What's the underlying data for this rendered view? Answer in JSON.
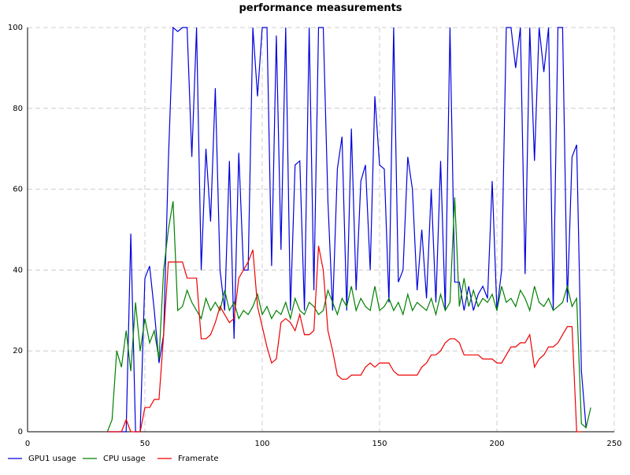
{
  "chart_data": {
    "type": "line",
    "title": "performance measurements",
    "x": [
      34,
      36,
      38,
      40,
      42,
      44,
      46,
      48,
      50,
      52,
      54,
      56,
      58,
      60,
      62,
      64,
      66,
      68,
      70,
      72,
      74,
      76,
      78,
      80,
      82,
      84,
      86,
      88,
      90,
      92,
      94,
      96,
      98,
      100,
      102,
      104,
      106,
      108,
      110,
      112,
      114,
      116,
      118,
      120,
      122,
      124,
      126,
      128,
      130,
      132,
      134,
      136,
      138,
      140,
      142,
      144,
      146,
      148,
      150,
      152,
      154,
      156,
      158,
      160,
      162,
      164,
      166,
      168,
      170,
      172,
      174,
      176,
      178,
      180,
      182,
      184,
      186,
      188,
      190,
      192,
      194,
      196,
      198,
      200,
      202,
      204,
      206,
      208,
      210,
      212,
      214,
      216,
      218,
      220,
      222,
      224,
      226,
      228,
      230,
      232,
      234,
      236,
      238,
      240
    ],
    "series": [
      {
        "name": "GPU1 usage",
        "color": "#0000dd",
        "values": [
          0,
          0,
          0,
          0,
          0,
          49,
          0,
          0,
          38,
          41,
          30,
          17,
          24,
          67,
          100,
          99,
          100,
          100,
          68,
          100,
          40,
          70,
          52,
          85,
          40,
          30,
          67,
          23,
          69,
          40,
          40,
          100,
          83,
          100,
          100,
          41,
          98,
          45,
          100,
          30,
          66,
          67,
          30,
          100,
          35,
          100,
          100,
          57,
          30,
          65,
          73,
          30,
          75,
          35,
          62,
          66,
          40,
          83,
          66,
          65,
          32,
          100,
          37,
          40,
          68,
          60,
          35,
          50,
          33,
          60,
          32,
          67,
          30,
          100,
          37,
          37,
          30,
          36,
          30,
          34,
          36,
          33,
          62,
          30,
          40,
          100,
          100,
          90,
          100,
          39,
          100,
          67,
          100,
          89,
          100,
          30,
          100,
          100,
          32,
          68,
          71,
          15,
          1,
          null
        ]
      },
      {
        "name": "CPU usage",
        "color": "#008000",
        "values": [
          0,
          3,
          20,
          16,
          25,
          15,
          32,
          20,
          28,
          22,
          25,
          18,
          40,
          50,
          57,
          30,
          31,
          35,
          32,
          30,
          28,
          33,
          30,
          32,
          30,
          35,
          30,
          32,
          28,
          30,
          29,
          31,
          34,
          29,
          31,
          28,
          30,
          29,
          32,
          28,
          33,
          30,
          29,
          32,
          31,
          29,
          30,
          35,
          32,
          29,
          33,
          31,
          36,
          30,
          33,
          31,
          30,
          36,
          30,
          31,
          33,
          30,
          32,
          29,
          34,
          30,
          32,
          31,
          30,
          33,
          29,
          34,
          30,
          32,
          58,
          31,
          38,
          31,
          35,
          31,
          33,
          32,
          34,
          30,
          36,
          32,
          33,
          31,
          35,
          33,
          30,
          36,
          32,
          31,
          33,
          30,
          31,
          32,
          36,
          31,
          33,
          2,
          1,
          6
        ]
      },
      {
        "name": "Framerate",
        "color": "#ee0000",
        "values": [
          0,
          0,
          0,
          0,
          3,
          0,
          0,
          0,
          6,
          6,
          8,
          8,
          24,
          42,
          42,
          42,
          42,
          38,
          38,
          38,
          23,
          23,
          24,
          27,
          31,
          29,
          27,
          28,
          38,
          40,
          42,
          45,
          31,
          26,
          21,
          17,
          18,
          27,
          28,
          27,
          25,
          29,
          24,
          24,
          25,
          46,
          40,
          25,
          20,
          14,
          13,
          13,
          14,
          14,
          14,
          16,
          17,
          16,
          17,
          17,
          17,
          15,
          14,
          14,
          14,
          14,
          14,
          16,
          17,
          19,
          19,
          20,
          22,
          23,
          23,
          22,
          19,
          19,
          19,
          19,
          18,
          18,
          18,
          17,
          17,
          19,
          21,
          21,
          22,
          22,
          24,
          16,
          18,
          19,
          21,
          21,
          22,
          24,
          26,
          26,
          0,
          0,
          null,
          null
        ]
      }
    ],
    "xlim": [
      0,
      250
    ],
    "xticks": [
      0,
      50,
      100,
      150,
      200,
      250
    ],
    "ylim": [
      0,
      100
    ],
    "yticks": [
      0,
      20,
      40,
      60,
      80,
      100
    ],
    "grid": true,
    "legend": "bottom-left"
  }
}
